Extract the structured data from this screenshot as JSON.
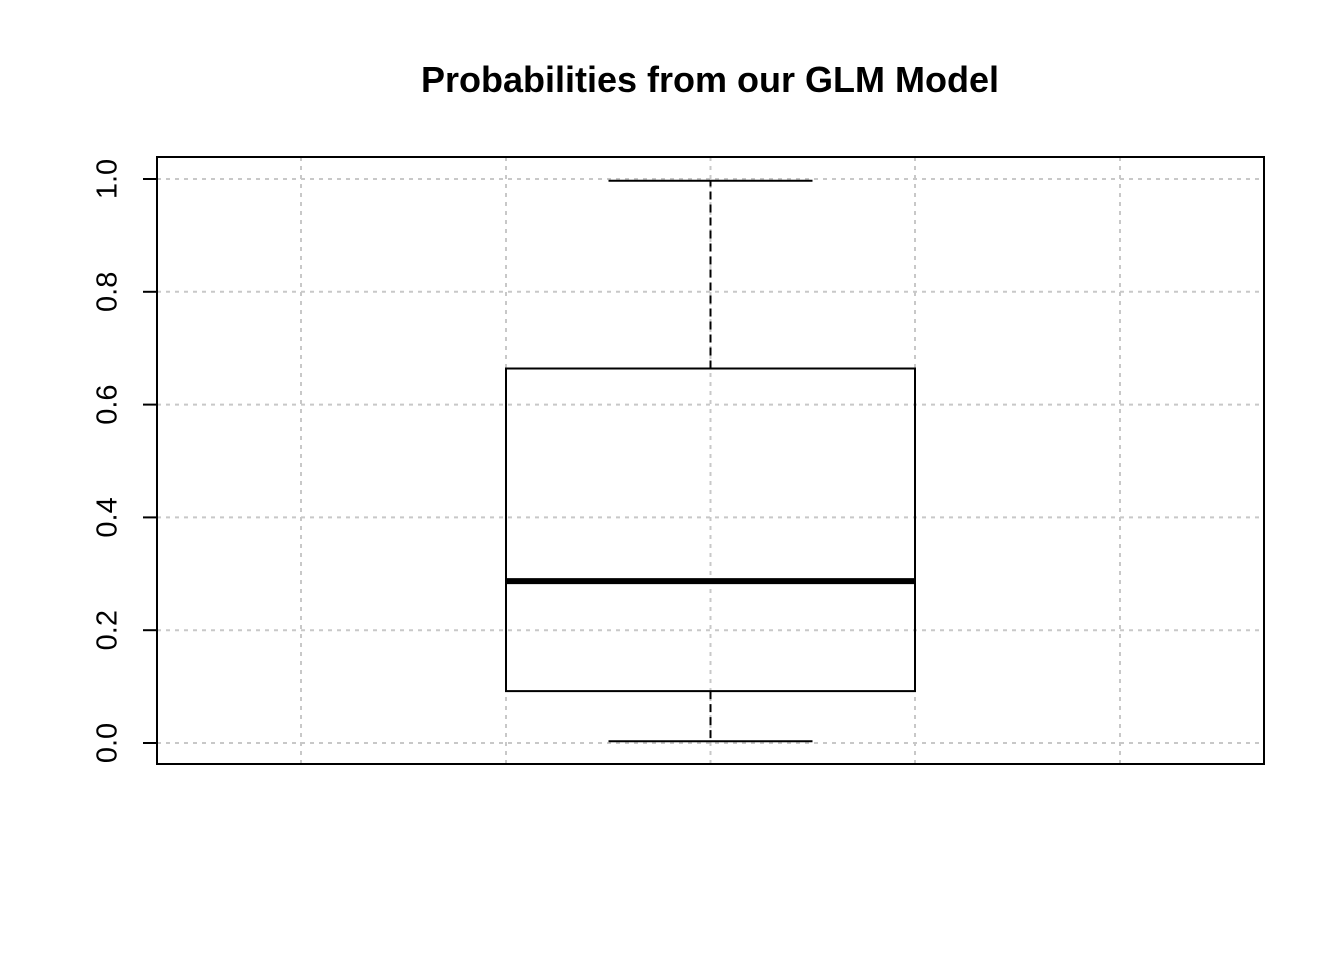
{
  "chart_data": {
    "type": "boxplot",
    "title": "Probabilities from our GLM Model",
    "xlabel": "",
    "ylabel": "",
    "ylim": [
      0.0,
      1.0
    ],
    "yticks": [
      0.0,
      0.2,
      0.4,
      0.6,
      0.8,
      1.0
    ],
    "ytick_labels": [
      "0.0",
      "0.2",
      "0.4",
      "0.6",
      "0.8",
      "1.0"
    ],
    "grid": true,
    "legend": "none",
    "box": {
      "min": 0.003,
      "q1": 0.092,
      "median": 0.287,
      "q3": 0.664,
      "max": 0.997
    },
    "colors": {
      "box_stroke": "#000000",
      "grid": "#c8c8c8",
      "axis": "#000000",
      "background": "#ffffff"
    }
  }
}
